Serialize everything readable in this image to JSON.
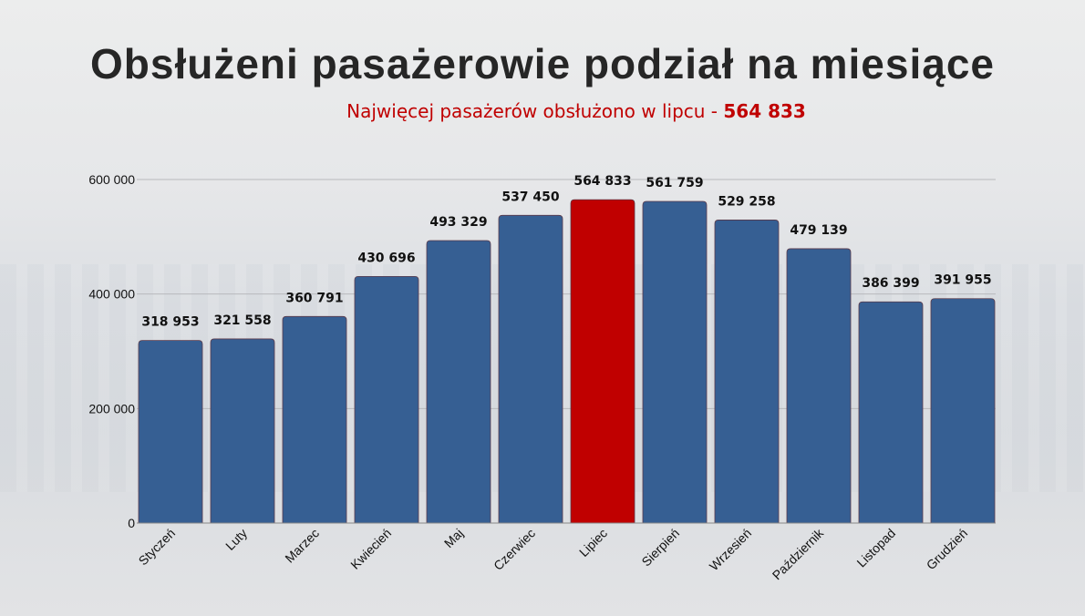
{
  "title": "Obsłużeni pasażerowie podział na miesiące",
  "subtitle": {
    "text": "Najwięcej pasażerów obsłużono w lipcu - ",
    "highlight": "564 833"
  },
  "colors": {
    "bar": "#365F93",
    "highlight": "#C00000",
    "outline": "#5a3a4a"
  },
  "chart_data": {
    "type": "bar",
    "title": "Obsłużeni pasażerowie podział na miesiące",
    "categories": [
      "Styczeń",
      "Luty",
      "Marzec",
      "Kwiecień",
      "Maj",
      "Czerwiec",
      "Lipiec",
      "Sierpień",
      "Wrzesień",
      "Październik",
      "Listopad",
      "Grudzień"
    ],
    "values": [
      318953,
      321558,
      360791,
      430696,
      493329,
      537450,
      564833,
      561759,
      529258,
      479139,
      386399,
      391955
    ],
    "data_labels": [
      "318 953",
      "321 558",
      "360 791",
      "430 696",
      "493 329",
      "537 450",
      "564 833",
      "561 759",
      "529 258",
      "479 139",
      "386 399",
      "391 955"
    ],
    "highlight_index": 6,
    "ylim": [
      0,
      600000
    ],
    "yticks": [
      0,
      200000,
      400000,
      600000
    ],
    "ytick_labels": [
      "0",
      "200 000",
      "400 000",
      "600 000"
    ],
    "grid": true,
    "xlabel": "",
    "ylabel": ""
  }
}
